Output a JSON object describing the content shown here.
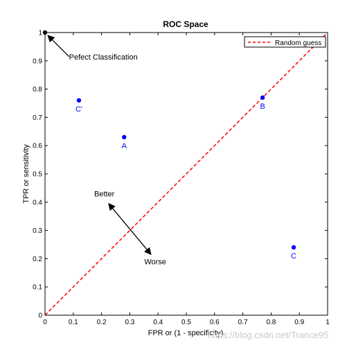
{
  "chart_data": {
    "type": "scatter",
    "title": "ROC Space",
    "xlabel": "FPR or (1 - specificity)",
    "ylabel": "TPR or sensitivity",
    "xlim": [
      0,
      1
    ],
    "ylim": [
      0,
      1
    ],
    "x_ticks": [
      "0",
      "0.1",
      "0.2",
      "0.3",
      "0.4",
      "0.5",
      "0.6",
      "0.7",
      "0.8",
      "0.9",
      "1"
    ],
    "y_ticks": [
      "0",
      "0.1",
      "0.2",
      "0.3",
      "0.4",
      "0.5",
      "0.6",
      "0.7",
      "0.8",
      "0.9",
      "1"
    ],
    "grid": false,
    "legend": {
      "position": "top-right",
      "entries": [
        {
          "label": "Random guess",
          "style": "dashed",
          "color": "#ff0000"
        }
      ]
    },
    "reference_line": {
      "x": [
        0,
        1
      ],
      "y": [
        0,
        1
      ],
      "color": "#ff0000",
      "style": "dashed"
    },
    "points": [
      {
        "label": "A",
        "x": 0.28,
        "y": 0.63,
        "color": "#0000ff"
      },
      {
        "label": "B",
        "x": 0.77,
        "y": 0.77,
        "color": "#0000ff"
      },
      {
        "label": "C",
        "x": 0.88,
        "y": 0.24,
        "color": "#0000ff"
      },
      {
        "label": "C′",
        "x": 0.12,
        "y": 0.76,
        "color": "#0000ff"
      },
      {
        "label": "",
        "x": 0.0,
        "y": 1.0,
        "color": "#000000"
      }
    ],
    "annotations": [
      {
        "text": "Pefect Classification",
        "x": 0.0,
        "y": 1.0
      },
      {
        "text": "Better",
        "x": 0.21,
        "y": 0.42
      },
      {
        "text": "Worse",
        "x": 0.39,
        "y": 0.18
      }
    ]
  },
  "watermark": "https://blog.csdn.net/Trance95"
}
